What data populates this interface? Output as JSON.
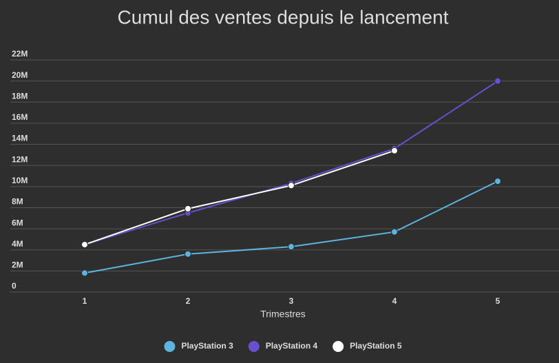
{
  "chart_data": {
    "type": "line",
    "title": "Cumul des ventes depuis le lancement",
    "x_label": "Trimestres",
    "categories": [
      "1",
      "2",
      "3",
      "4",
      "5"
    ],
    "series": [
      {
        "name": "PlayStation 3",
        "color": "#5bb5e0",
        "values": [
          1800000,
          3600000,
          4300000,
          5700000,
          10500000
        ]
      },
      {
        "name": "PlayStation 4",
        "color": "#6a4fd0",
        "values": [
          4500000,
          7500000,
          10300000,
          13600000,
          20000000
        ]
      },
      {
        "name": "PlayStation 5",
        "color": "#ffffff",
        "values": [
          4500000,
          7900000,
          10100000,
          13400000,
          null
        ]
      }
    ],
    "ylim": [
      0,
      22000000
    ],
    "yticks": [
      0,
      {
        "value": 2000000,
        "label": "2M"
      },
      {
        "value": 4000000,
        "label": "4M"
      },
      {
        "value": 6000000,
        "label": "6M"
      },
      {
        "value": 8000000,
        "label": "8M"
      },
      {
        "value": 10000000,
        "label": "10M"
      },
      {
        "value": 12000000,
        "label": "12M"
      },
      {
        "value": 14000000,
        "label": "14M"
      },
      {
        "value": 16000000,
        "label": "16M"
      },
      {
        "value": 18000000,
        "label": "18M"
      },
      {
        "value": 20000000,
        "label": "20M"
      },
      {
        "value": 22000000,
        "label": "22M"
      }
    ],
    "grid": true,
    "legend": "bottom"
  }
}
